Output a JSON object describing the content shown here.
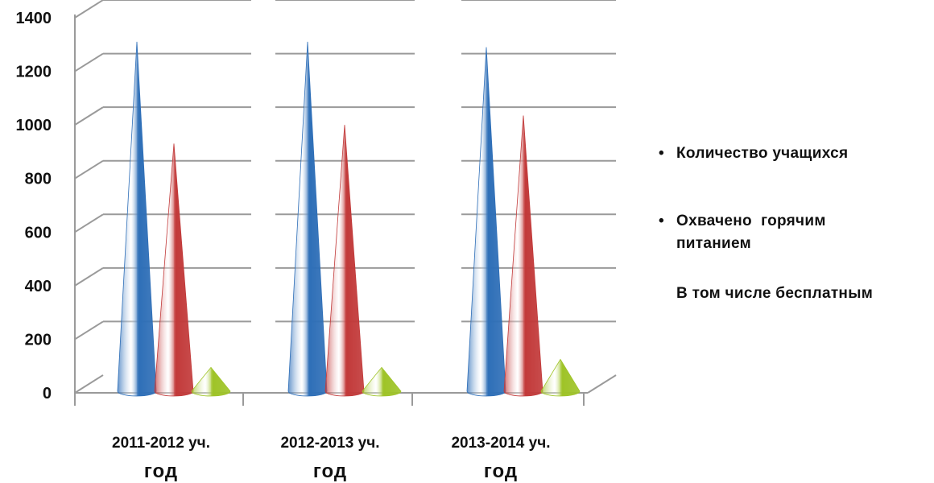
{
  "chart_data": {
    "type": "bar",
    "style": "3d-cone",
    "categories": [
      {
        "line1": "2011-2012 уч.",
        "line2": "год"
      },
      {
        "line1": "2012-2013 уч.",
        "line2": "год"
      },
      {
        "line1": "2013-2014 уч.",
        "line2": "год"
      }
    ],
    "series": [
      {
        "name": "Количество учащихся",
        "color": "#2f6fb8",
        "values": [
          1310,
          1310,
          1290
        ]
      },
      {
        "name": "Охвачено горячим питанием",
        "color": "#c23a3a",
        "values": [
          930,
          1000,
          1035
        ]
      },
      {
        "name": "В том числе бесплатным",
        "color": "#9fc427",
        "values": [
          95,
          95,
          125
        ]
      }
    ],
    "ylim": [
      0,
      1400
    ],
    "yticks": [
      "0",
      "200",
      "400",
      "600",
      "800",
      "1000",
      "1200",
      "1400"
    ],
    "grid": true,
    "legend_position": "right"
  },
  "legend": [
    {
      "bullet": "•",
      "text": "Количество учащихся",
      "sub": ""
    },
    {
      "bullet": "•",
      "text": "Охвачено  горячим",
      "sub": "питанием"
    },
    {
      "bullet": "",
      "text": "В том числе бесплатным",
      "sub": ""
    }
  ]
}
